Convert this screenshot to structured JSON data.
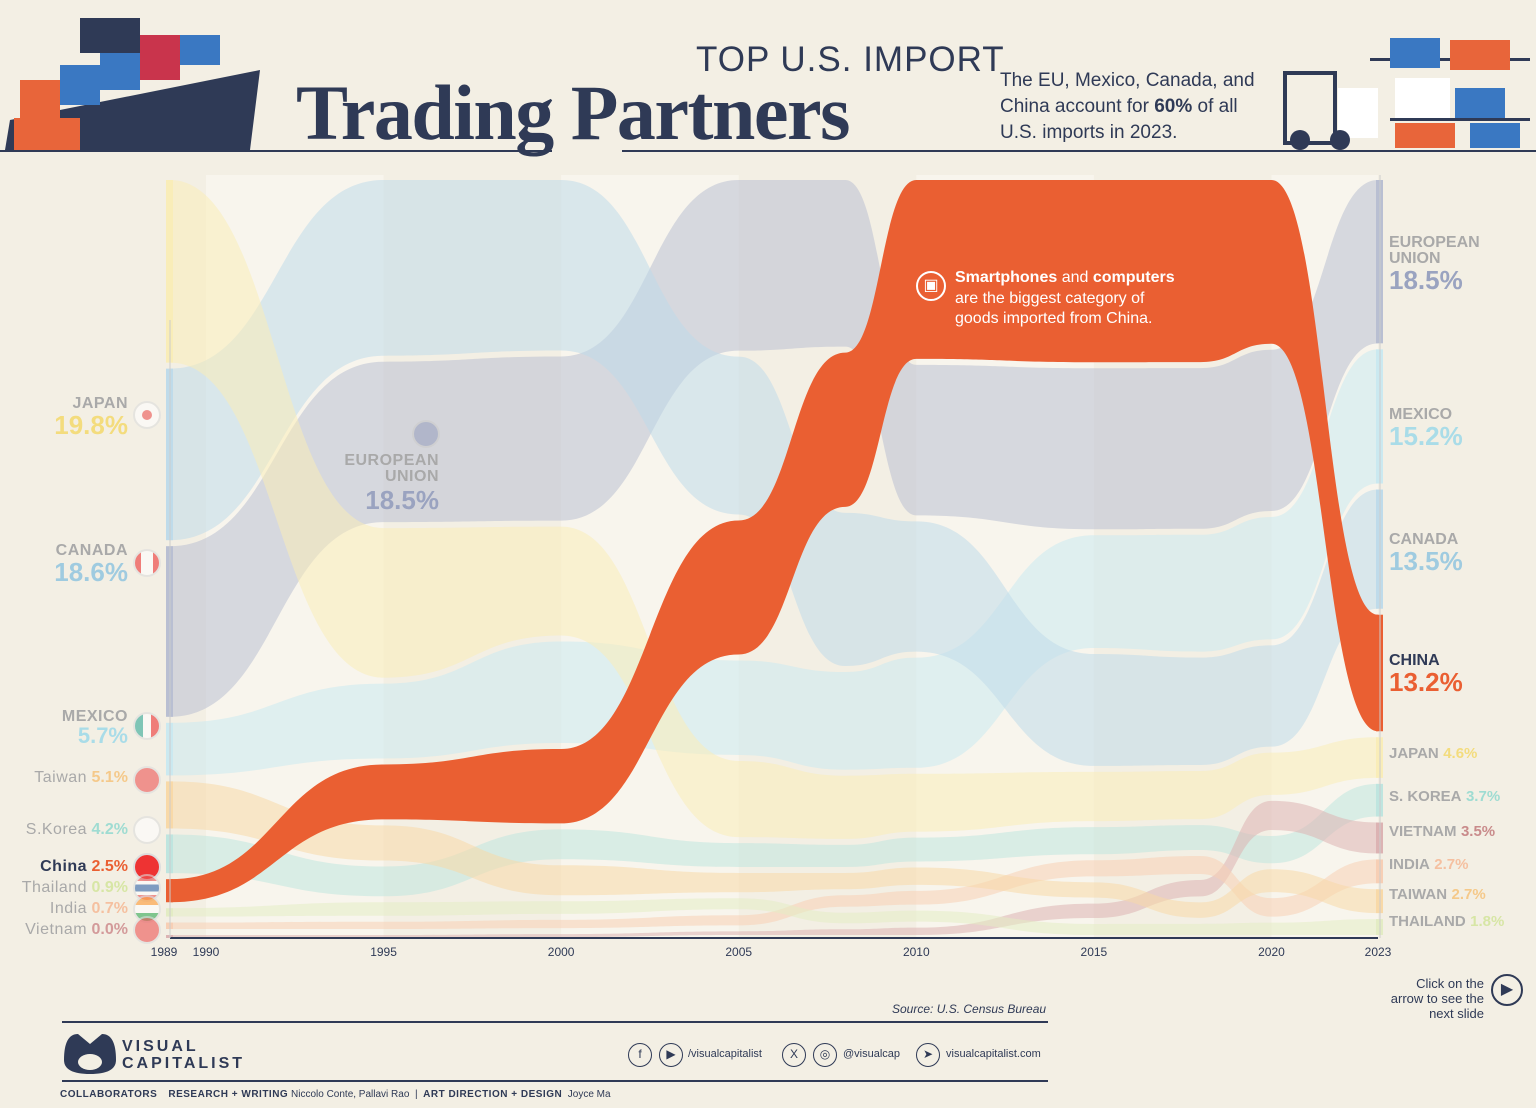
{
  "header": {
    "top_label": "TOP U.S. IMPORT",
    "title": "Trading Partners",
    "subtitle_pre": "The EU, Mexico, Canada, and China account for ",
    "subtitle_bold": "60%",
    "subtitle_post": " of all U.S. imports in 2023."
  },
  "annotation": {
    "icon": "chip-icon",
    "bold1": "Smartphones",
    "t1": " and ",
    "bold2": "computers",
    "t2": " are the biggest category of goods imported from China."
  },
  "left_labels": [
    {
      "name": "JAPAN",
      "value": "19.8%"
    },
    {
      "name": "CANADA",
      "value": "18.6%"
    },
    {
      "name": "EUROPEAN UNION",
      "value": "18.5%"
    },
    {
      "name": "MEXICO",
      "value": "5.7%"
    },
    {
      "name": "Taiwan",
      "value": "5.1%"
    },
    {
      "name": "S.Korea",
      "value": "4.2%"
    },
    {
      "name": "China",
      "value": "2.5%"
    },
    {
      "name": "Thailand",
      "value": "0.9%"
    },
    {
      "name": "India",
      "value": "0.7%"
    },
    {
      "name": "Vietnam",
      "value": "0.0%"
    }
  ],
  "right_labels": [
    {
      "name": "EUROPEAN UNION",
      "value": "18.5%"
    },
    {
      "name": "MEXICO",
      "value": "15.2%"
    },
    {
      "name": "CANADA",
      "value": "13.5%"
    },
    {
      "name": "CHINA",
      "value": "13.2%"
    },
    {
      "name": "JAPAN",
      "value": "4.6%"
    },
    {
      "name": "S. KOREA",
      "value": "3.7%"
    },
    {
      "name": "VIETNAM",
      "value": "3.5%"
    },
    {
      "name": "INDIA",
      "value": "2.7%"
    },
    {
      "name": "TAIWAN",
      "value": "2.7%"
    },
    {
      "name": "THAILAND",
      "value": "1.8%"
    }
  ],
  "chart_data": {
    "type": "area",
    "title": "",
    "xlabel": "",
    "ylabel": "",
    "x_ticks": [
      "1989",
      "1990",
      "1995",
      "2000",
      "2005",
      "2010",
      "2015",
      "2020",
      "2023"
    ],
    "x": [
      1989,
      1995,
      2000,
      2005,
      2008,
      2010,
      2015,
      2018,
      2020,
      2023
    ],
    "unit": "% of U.S. imports",
    "series": [
      {
        "name": "European Union",
        "color": "#b9bfd2",
        "values": [
          18.5,
          17.8,
          18.1,
          18.6,
          17.4,
          16.4,
          19.0,
          18.7,
          18.3,
          18.5
        ]
      },
      {
        "name": "Mexico",
        "color": "#cbe9f0",
        "values": [
          5.7,
          8.3,
          11.2,
          10.3,
          10.2,
          12.0,
          13.3,
          13.6,
          13.9,
          15.2
        ]
      },
      {
        "name": "Canada",
        "color": "#bfdbea",
        "values": [
          18.6,
          19.5,
          18.8,
          17.2,
          16.0,
          14.2,
          13.2,
          12.5,
          11.5,
          13.5
        ]
      },
      {
        "name": "China",
        "color": "#ea5f32",
        "values": [
          2.5,
          6.1,
          8.2,
          14.6,
          16.1,
          19.5,
          21.5,
          21.2,
          18.6,
          13.2
        ]
      },
      {
        "name": "Japan",
        "color": "#f9edb8",
        "values": [
          19.8,
          16.6,
          12.0,
          8.3,
          6.6,
          6.3,
          5.8,
          5.6,
          4.8,
          4.6
        ]
      },
      {
        "name": "S. Korea",
        "color": "#bfe5df",
        "values": [
          4.2,
          3.3,
          3.3,
          2.6,
          2.3,
          2.6,
          3.2,
          2.9,
          3.1,
          3.7
        ]
      },
      {
        "name": "Vietnam",
        "color": "#dcb3b3",
        "values": [
          0.0,
          0.0,
          0.1,
          0.4,
          0.6,
          0.8,
          1.7,
          1.9,
          3.3,
          3.5
        ]
      },
      {
        "name": "India",
        "color": "#f7cfb5",
        "values": [
          0.7,
          0.8,
          0.9,
          1.1,
          1.2,
          1.5,
          1.9,
          2.1,
          2.1,
          2.7
        ]
      },
      {
        "name": "Taiwan",
        "color": "#f8d9a8",
        "values": [
          5.1,
          3.9,
          3.3,
          2.1,
          1.7,
          1.9,
          1.8,
          1.8,
          2.6,
          2.7
        ]
      },
      {
        "name": "Thailand",
        "color": "#e3ecc4",
        "values": [
          0.9,
          1.5,
          1.4,
          1.2,
          1.1,
          1.2,
          1.3,
          1.3,
          1.4,
          1.8
        ]
      }
    ],
    "grid": false,
    "legend": "direct labels left and right"
  },
  "footer": {
    "source": "Source: U.S. Census Bureau",
    "next_text": "Click on the arrow to see the next slide",
    "logo_line1": "VISUAL",
    "logo_line2": "CAPITALIST",
    "social1": "/visualcapitalist",
    "social2": "@visualcap",
    "website": "visualcapitalist.com",
    "collab_label": "COLLABORATORS",
    "research_label": "RESEARCH + WRITING",
    "research_names": "Niccolo Conte, Pallavi Rao",
    "sep": "|",
    "design_label": "ART DIRECTION + DESIGN",
    "design_names": "Joyce Ma"
  }
}
